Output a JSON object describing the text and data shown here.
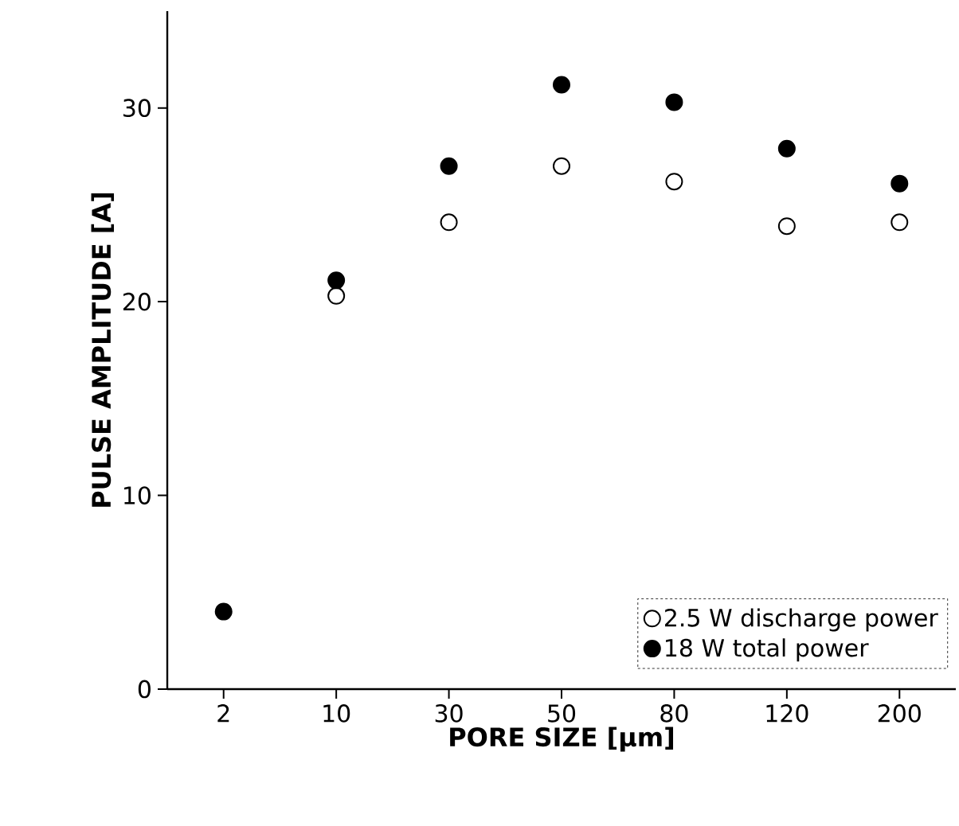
{
  "chart_data": {
    "type": "scatter",
    "xlabel": "PORE SIZE [µm]",
    "ylabel": "PULSE AMPLITUDE [A]",
    "categories": [
      "2",
      "10",
      "30",
      "50",
      "80",
      "120",
      "200"
    ],
    "series": [
      {
        "name": "2.5 W discharge power",
        "color": "#ffffff",
        "values": [
          null,
          20.3,
          24.1,
          27.0,
          26.2,
          23.9,
          24.1
        ]
      },
      {
        "name": "18 W total power",
        "color": "#000000",
        "values": [
          4.0,
          21.1,
          27.0,
          31.2,
          30.3,
          27.9,
          26.1
        ]
      }
    ],
    "ylim": [
      0,
      35
    ],
    "yticks": [
      0,
      10,
      20,
      30
    ],
    "marker": "circle",
    "legend": "bottom right",
    "grid": false
  }
}
